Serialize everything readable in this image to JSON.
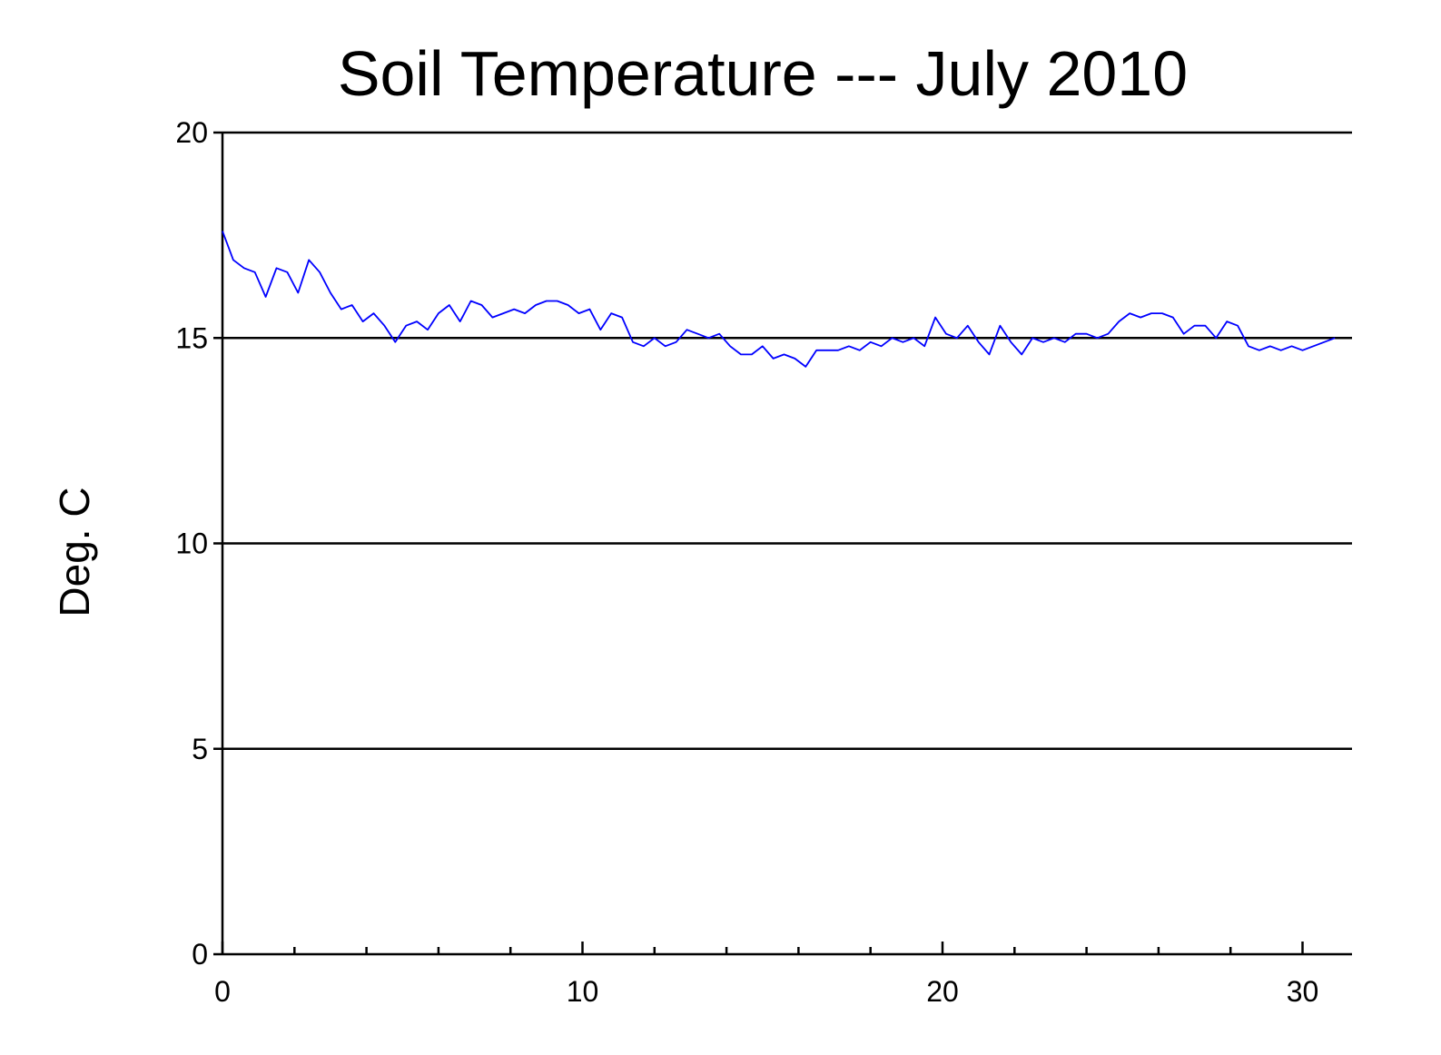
{
  "chart_data": {
    "type": "line",
    "title": "Soil Temperature --- July 2010",
    "xlabel": "",
    "ylabel": "Deg. C",
    "xlim": [
      0,
      31.4
    ],
    "ylim": [
      0,
      20
    ],
    "x_ticks": [
      0,
      10,
      20,
      30
    ],
    "x_minor_ticks": [
      2,
      4,
      6,
      8,
      12,
      14,
      16,
      18,
      22,
      24,
      26,
      28
    ],
    "y_ticks": [
      0,
      5,
      10,
      15,
      20
    ],
    "y_gridlines": [
      5,
      10,
      15,
      20
    ],
    "grid": "horizontal",
    "legend": "none",
    "series": [
      {
        "color": "#0000ff",
        "x": [
          0.0,
          0.3,
          0.6,
          0.9,
          1.2,
          1.5,
          1.8,
          2.1,
          2.4,
          2.7,
          3.0,
          3.3,
          3.6,
          3.9,
          4.2,
          4.5,
          4.8,
          5.1,
          5.4,
          5.7,
          6.0,
          6.3,
          6.6,
          6.9,
          7.2,
          7.5,
          7.8,
          8.1,
          8.4,
          8.7,
          9.0,
          9.3,
          9.6,
          9.9,
          10.2,
          10.5,
          10.8,
          11.1,
          11.4,
          11.7,
          12.0,
          12.3,
          12.6,
          12.9,
          13.2,
          13.5,
          13.8,
          14.1,
          14.4,
          14.7,
          15.0,
          15.3,
          15.6,
          15.9,
          16.2,
          16.5,
          16.8,
          17.1,
          17.4,
          17.7,
          18.0,
          18.3,
          18.6,
          18.9,
          19.2,
          19.5,
          19.8,
          20.1,
          20.4,
          20.7,
          21.0,
          21.3,
          21.6,
          21.9,
          22.2,
          22.5,
          22.8,
          23.1,
          23.4,
          23.7,
          24.0,
          24.3,
          24.6,
          24.9,
          25.2,
          25.5,
          25.8,
          26.1,
          26.4,
          26.7,
          27.0,
          27.3,
          27.6,
          27.9,
          28.2,
          28.5,
          28.8,
          29.1,
          29.4,
          29.7,
          30.0,
          30.3,
          30.6,
          30.9
        ],
        "y": [
          17.6,
          16.9,
          16.7,
          16.6,
          16.0,
          16.7,
          16.6,
          16.1,
          16.9,
          16.6,
          16.1,
          15.7,
          15.8,
          15.4,
          15.6,
          15.3,
          14.9,
          15.3,
          15.4,
          15.2,
          15.6,
          15.8,
          15.4,
          15.9,
          15.8,
          15.5,
          15.6,
          15.7,
          15.6,
          15.8,
          15.9,
          15.9,
          15.8,
          15.6,
          15.7,
          15.2,
          15.6,
          15.5,
          14.9,
          14.8,
          15.0,
          14.8,
          14.9,
          15.2,
          15.1,
          15.0,
          15.1,
          14.8,
          14.6,
          14.6,
          14.8,
          14.5,
          14.6,
          14.5,
          14.3,
          14.7,
          14.7,
          14.7,
          14.8,
          14.7,
          14.9,
          14.8,
          15.0,
          14.9,
          15.0,
          14.8,
          15.5,
          15.1,
          15.0,
          15.3,
          14.9,
          14.6,
          15.3,
          14.9,
          14.6,
          15.0,
          14.9,
          15.0,
          14.9,
          15.1,
          15.1,
          15.0,
          15.1,
          15.4,
          15.6,
          15.5,
          15.6,
          15.6,
          15.5,
          15.1,
          15.3,
          15.3,
          15.0,
          15.4,
          15.3,
          14.8,
          14.7,
          14.8,
          14.7,
          14.8,
          14.7,
          14.8,
          14.9,
          15.0
        ]
      }
    ]
  }
}
